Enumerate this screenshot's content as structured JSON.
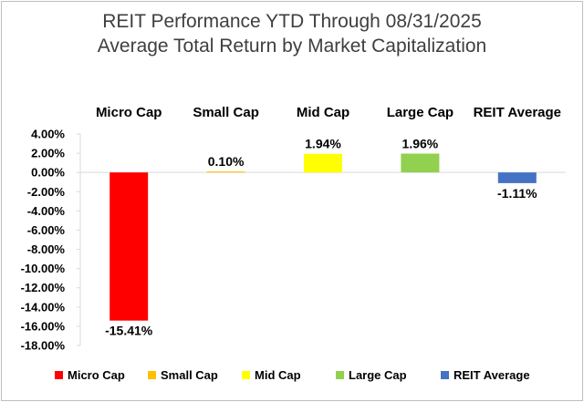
{
  "chart_data": {
    "type": "bar",
    "title": "REIT Performance YTD Through 08/31/2025",
    "subtitle": "Average Total Return by Market Capitalization",
    "categories": [
      "Micro Cap",
      "Small Cap",
      "Mid Cap",
      "Large Cap",
      "REIT Average"
    ],
    "values": [
      -15.41,
      0.1,
      1.94,
      1.96,
      -1.11
    ],
    "value_labels": [
      "-15.41%",
      "0.10%",
      "1.94%",
      "1.96%",
      "-1.11%"
    ],
    "colors": [
      "#ff0000",
      "#ffc000",
      "#ffff00",
      "#92d050",
      "#4472c4"
    ],
    "ylim": [
      -18,
      4
    ],
    "yticks": [
      4,
      2,
      0,
      -2,
      -4,
      -6,
      -8,
      -10,
      -12,
      -14,
      -16,
      -18
    ],
    "ytick_labels": [
      "4.00%",
      "2.00%",
      "0.00%",
      "-2.00%",
      "-4.00%",
      "-6.00%",
      "-8.00%",
      "-10.00%",
      "-12.00%",
      "-14.00%",
      "-16.00%",
      "-18.00%"
    ],
    "xlabel": "",
    "ylabel": "",
    "grid": false,
    "category_labels_position": "top",
    "legend": {
      "position": "bottom",
      "entries": [
        "Micro Cap",
        "Small Cap",
        "Mid Cap",
        "Large Cap",
        "REIT Average"
      ]
    }
  }
}
